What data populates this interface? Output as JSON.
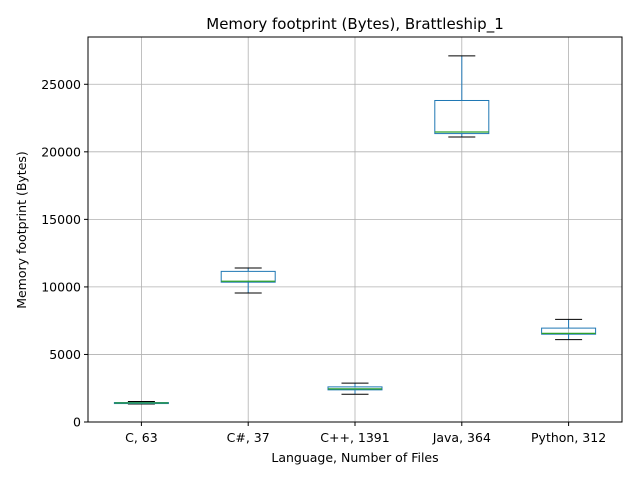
{
  "chart_data": {
    "type": "box",
    "title": "Memory footprint (Bytes), Brattleship_1",
    "xlabel": "Language, Number of Files",
    "ylabel": "Memory footprint (Bytes)",
    "ylim": [
      0,
      28500
    ],
    "yticks": [
      0,
      5000,
      10000,
      15000,
      20000,
      25000
    ],
    "grid": true,
    "categories": [
      "C, 63",
      "C#, 37",
      "C++, 1391",
      "Java, 364",
      "Python, 312"
    ],
    "boxes": [
      {
        "category": "C, 63",
        "whisker_low": 1330,
        "q1": 1380,
        "median": 1410,
        "q3": 1440,
        "whisker_high": 1520
      },
      {
        "category": "C#, 37",
        "whisker_low": 9550,
        "q1": 10350,
        "median": 10420,
        "q3": 11150,
        "whisker_high": 11400
      },
      {
        "category": "C++, 1391",
        "whisker_low": 2050,
        "q1": 2380,
        "median": 2450,
        "q3": 2600,
        "whisker_high": 2880
      },
      {
        "category": "Java, 364",
        "whisker_low": 21100,
        "q1": 21350,
        "median": 21470,
        "q3": 23800,
        "whisker_high": 27100
      },
      {
        "category": "Python, 312",
        "whisker_low": 6100,
        "q1": 6500,
        "median": 6560,
        "q3": 6950,
        "whisker_high": 7600
      }
    ],
    "colors": {
      "box": "#1f77b4",
      "median": "#2ca02c",
      "whisker_cap": "#000000",
      "grid": "#b0b0b0"
    }
  }
}
